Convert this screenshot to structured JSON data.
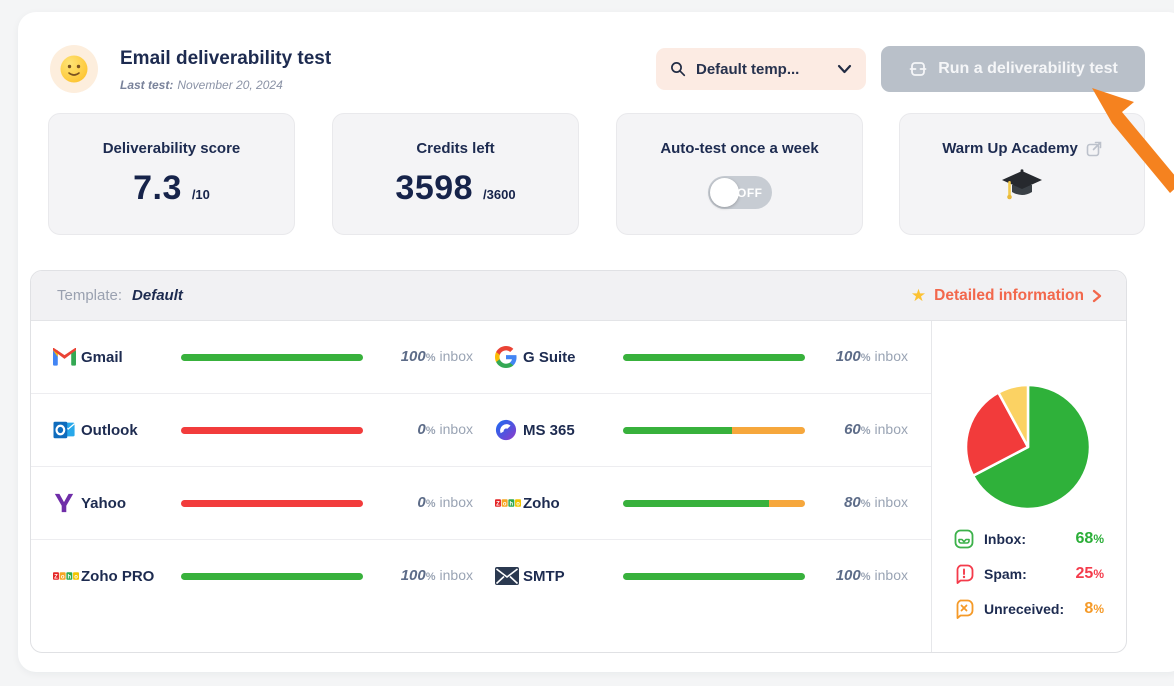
{
  "header": {
    "title": "Email deliverability test",
    "last_test_label": "Last test:",
    "last_test_date": "November 20, 2024"
  },
  "toolbar": {
    "template_select_value": "Default temp...",
    "run_test_label": "Run a deliverability test"
  },
  "stats": {
    "deliverability": {
      "label": "Deliverability score",
      "value": "7.3",
      "total": "/10"
    },
    "credits": {
      "label": "Credits left",
      "value": "3598",
      "total": "/3600"
    },
    "autotest": {
      "label": "Auto-test once a week",
      "toggle_state": "OFF"
    },
    "academy": {
      "label": "Warm Up Academy"
    }
  },
  "template_panel": {
    "template_label": "Template:",
    "template_name": "Default",
    "detailed_info_label": "Detailed information"
  },
  "strings": {
    "pct_sign": "%",
    "inbox_unit": "inbox"
  },
  "colors": {
    "bar_green": "#38b13c",
    "bar_red": "#f23c3c",
    "bar_orange": "#f6a73c",
    "accent_coral": "#f2684c",
    "arrow_orange": "#f5821f"
  },
  "providers": [
    {
      "name": "Gmail",
      "pct": 100,
      "segments": [
        {
          "color": "#38b13c",
          "pct": 100
        }
      ]
    },
    {
      "name": "G Suite",
      "pct": 100,
      "segments": [
        {
          "color": "#38b13c",
          "pct": 100
        }
      ]
    },
    {
      "name": "Outlook",
      "pct": 0,
      "segments": [
        {
          "color": "#f23c3c",
          "pct": 100
        }
      ]
    },
    {
      "name": "MS 365",
      "pct": 60,
      "segments": [
        {
          "color": "#38b13c",
          "pct": 60
        },
        {
          "color": "#f6a73c",
          "pct": 40
        }
      ]
    },
    {
      "name": "Yahoo",
      "pct": 0,
      "segments": [
        {
          "color": "#f23c3c",
          "pct": 100
        }
      ]
    },
    {
      "name": "Zoho",
      "pct": 80,
      "segments": [
        {
          "color": "#38b13c",
          "pct": 80
        },
        {
          "color": "#f6a73c",
          "pct": 20
        }
      ]
    },
    {
      "name": "Zoho PRO",
      "pct": 100,
      "segments": [
        {
          "color": "#38b13c",
          "pct": 100
        }
      ]
    },
    {
      "name": "SMTP",
      "pct": 100,
      "segments": [
        {
          "color": "#38b13c",
          "pct": 100
        }
      ]
    }
  ],
  "chart_data": {
    "type": "pie",
    "labels": [
      "Inbox",
      "Spam",
      "Unreceived"
    ],
    "values": [
      68,
      25,
      8
    ],
    "colors": [
      "#2fb13a",
      "#f23b3b",
      "#fbd263"
    ],
    "legend_position": "bottom",
    "title": ""
  },
  "legend": [
    {
      "label": "Inbox:",
      "value": 68,
      "color": "#2bae38"
    },
    {
      "label": "Spam:",
      "value": 25,
      "color": "#f43b4b"
    },
    {
      "label": "Unreceived:",
      "value": 8,
      "color": "#f59a28"
    }
  ]
}
